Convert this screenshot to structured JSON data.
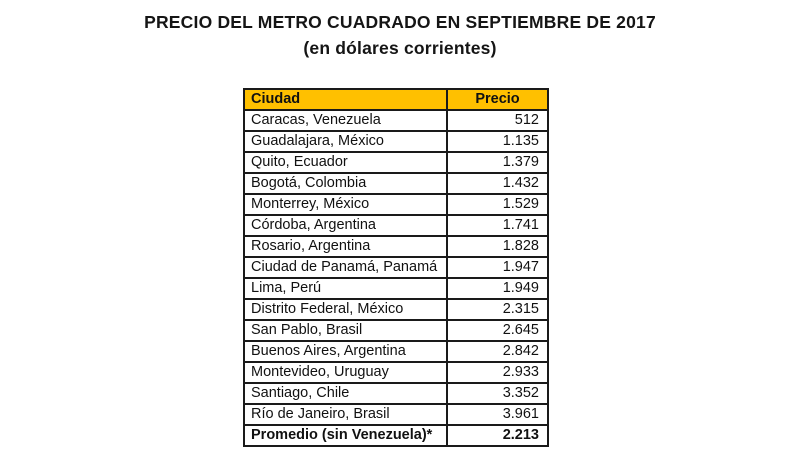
{
  "title": {
    "line1": "PRECIO DEL METRO CUADRADO EN SEPTIEMBRE DE 2017",
    "line2": "(en dólares corrientes)"
  },
  "table": {
    "headers": [
      "Ciudad",
      "Precio"
    ],
    "rows": [
      {
        "city": "Caracas, Venezuela",
        "price": "512",
        "bold": false
      },
      {
        "city": "Guadalajara, México",
        "price": "1.135",
        "bold": false
      },
      {
        "city": "Quito, Ecuador",
        "price": "1.379",
        "bold": false
      },
      {
        "city": "Bogotá, Colombia",
        "price": "1.432",
        "bold": false
      },
      {
        "city": "Monterrey, México",
        "price": "1.529",
        "bold": false
      },
      {
        "city": "Córdoba, Argentina",
        "price": "1.741",
        "bold": false
      },
      {
        "city": "Rosario, Argentina",
        "price": "1.828",
        "bold": false
      },
      {
        "city": "Ciudad de Panamá, Panamá",
        "price": "1.947",
        "bold": false
      },
      {
        "city": "Lima, Perú",
        "price": "1.949",
        "bold": false
      },
      {
        "city": "Distrito Federal, México",
        "price": "2.315",
        "bold": false
      },
      {
        "city": "San Pablo, Brasil",
        "price": "2.645",
        "bold": false
      },
      {
        "city": "Buenos Aires, Argentina",
        "price": "2.842",
        "bold": false
      },
      {
        "city": "Montevideo, Uruguay",
        "price": "2.933",
        "bold": false
      },
      {
        "city": "Santiago, Chile",
        "price": "3.352",
        "bold": false
      },
      {
        "city": "Río de Janeiro, Brasil",
        "price": "3.961",
        "bold": false
      },
      {
        "city": "Promedio (sin Venezuela)*",
        "price": "2.213",
        "bold": true
      }
    ],
    "colors": {
      "header_bg": "#FFC000",
      "border": "#1a1a1a",
      "text": "#111111"
    }
  },
  "chart_data": {
    "type": "table",
    "title": "PRECIO DEL METRO CUADRADO EN SEPTIEMBRE DE 2017",
    "subtitle": "(en dólares corrientes)",
    "columns": [
      "Ciudad",
      "Precio"
    ],
    "rows": [
      [
        "Caracas, Venezuela",
        512
      ],
      [
        "Guadalajara, México",
        1135
      ],
      [
        "Quito, Ecuador",
        1379
      ],
      [
        "Bogotá, Colombia",
        1432
      ],
      [
        "Monterrey, México",
        1529
      ],
      [
        "Córdoba, Argentina",
        1741
      ],
      [
        "Rosario, Argentina",
        1828
      ],
      [
        "Ciudad de Panamá, Panamá",
        1947
      ],
      [
        "Lima, Perú",
        1949
      ],
      [
        "Distrito Federal, México",
        2315
      ],
      [
        "San Pablo, Brasil",
        2645
      ],
      [
        "Buenos Aires, Argentina",
        2842
      ],
      [
        "Montevideo, Uruguay",
        2933
      ],
      [
        "Santiago, Chile",
        3352
      ],
      [
        "Río de Janeiro, Brasil",
        3961
      ],
      [
        "Promedio (sin Venezuela)*",
        2213
      ]
    ]
  }
}
